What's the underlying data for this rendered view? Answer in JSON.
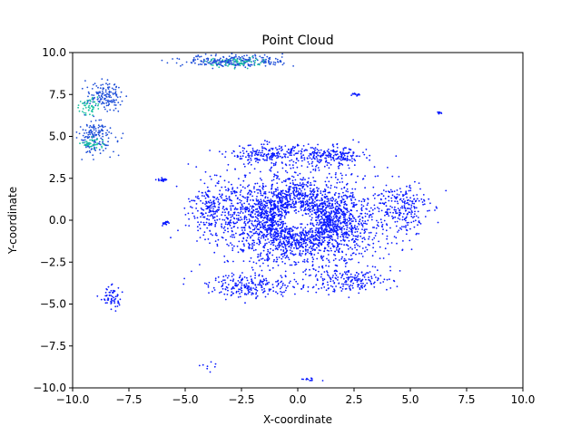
{
  "chart_data": {
    "type": "scatter",
    "title": "Point Cloud",
    "xlabel": "X-coordinate",
    "ylabel": "Y-coordinate",
    "xlim": [
      -10,
      10
    ],
    "ylim": [
      -10,
      10
    ],
    "x_ticks": [
      "−10.0",
      "−7.5",
      "−5.0",
      "−2.5",
      "0.0",
      "2.5",
      "5.0",
      "7.5",
      "10.0"
    ],
    "y_ticks": [
      "−10.0",
      "−7.5",
      "−5.0",
      "−2.5",
      "0.0",
      "2.5",
      "5.0",
      "7.5",
      "10.0"
    ],
    "x_tick_values": [
      -10,
      -7.5,
      -5,
      -2.5,
      0,
      2.5,
      5,
      7.5,
      10
    ],
    "y_tick_values": [
      -10,
      -7.5,
      -5,
      -2.5,
      0,
      2.5,
      5,
      7.5,
      10
    ],
    "grid": false,
    "colors": {
      "primary": "#0a1aff",
      "cluster_dark": "#1f4fd8",
      "cluster_teal": "#19c2a0",
      "cluster_mid": "#2a7fc0"
    },
    "clusters": [
      {
        "center": [
          0,
          0
        ],
        "spread": [
          3.2,
          2.4
        ],
        "count": 2600,
        "color": "#0a1aff"
      },
      {
        "center": [
          -1.2,
          3.9
        ],
        "spread": [
          1.8,
          0.6
        ],
        "count": 220,
        "color": "#0a1aff"
      },
      {
        "center": [
          1.5,
          3.8
        ],
        "spread": [
          1.6,
          0.6
        ],
        "count": 200,
        "color": "#0a1aff"
      },
      {
        "center": [
          -2.0,
          -3.9
        ],
        "spread": [
          2.0,
          0.7
        ],
        "count": 220,
        "color": "#0a1aff"
      },
      {
        "center": [
          2.2,
          -3.6
        ],
        "spread": [
          2.0,
          0.7
        ],
        "count": 200,
        "color": "#0a1aff"
      },
      {
        "center": [
          4.6,
          0.8
        ],
        "spread": [
          1.2,
          1.6
        ],
        "count": 220,
        "color": "#0a1aff"
      },
      {
        "center": [
          -3.8,
          0.8
        ],
        "spread": [
          0.9,
          1.6
        ],
        "count": 180,
        "color": "#0a1aff"
      },
      {
        "center": [
          -8.3,
          -4.6
        ],
        "spread": [
          0.5,
          0.7
        ],
        "count": 60,
        "color": "#0a1aff"
      },
      {
        "center": [
          -6.0,
          2.4
        ],
        "spread": [
          0.2,
          0.1
        ],
        "count": 25,
        "color": "#0a1aff"
      },
      {
        "center": [
          -5.9,
          -0.2
        ],
        "spread": [
          0.15,
          0.15
        ],
        "count": 15,
        "color": "#0a1aff"
      },
      {
        "center": [
          -9.0,
          5.0
        ],
        "spread": [
          0.9,
          1.0
        ],
        "count": 160,
        "color": "#1f4fd8"
      },
      {
        "center": [
          -8.6,
          7.4
        ],
        "spread": [
          0.8,
          0.8
        ],
        "count": 140,
        "color": "#1f4fd8"
      },
      {
        "center": [
          -9.3,
          6.8
        ],
        "spread": [
          0.4,
          0.5
        ],
        "count": 50,
        "color": "#19c2a0"
      },
      {
        "center": [
          -9.1,
          4.6
        ],
        "spread": [
          0.5,
          0.4
        ],
        "count": 40,
        "color": "#19c2a0"
      },
      {
        "center": [
          -2.8,
          9.5
        ],
        "spread": [
          2.2,
          0.35
        ],
        "count": 260,
        "color": "#1f4fd8"
      },
      {
        "center": [
          -2.6,
          9.4
        ],
        "spread": [
          1.4,
          0.3
        ],
        "count": 60,
        "color": "#19c2a0"
      },
      {
        "center": [
          2.6,
          7.5
        ],
        "spread": [
          0.2,
          0.1
        ],
        "count": 15,
        "color": "#0a1aff"
      },
      {
        "center": [
          6.3,
          6.4
        ],
        "spread": [
          0.15,
          0.05
        ],
        "count": 8,
        "color": "#0a1aff"
      },
      {
        "center": [
          0.5,
          -9.5
        ],
        "spread": [
          0.4,
          0.1
        ],
        "count": 12,
        "color": "#0a1aff"
      },
      {
        "center": [
          -4.0,
          -8.8
        ],
        "spread": [
          0.6,
          0.4
        ],
        "count": 8,
        "color": "#0a1aff"
      }
    ]
  }
}
